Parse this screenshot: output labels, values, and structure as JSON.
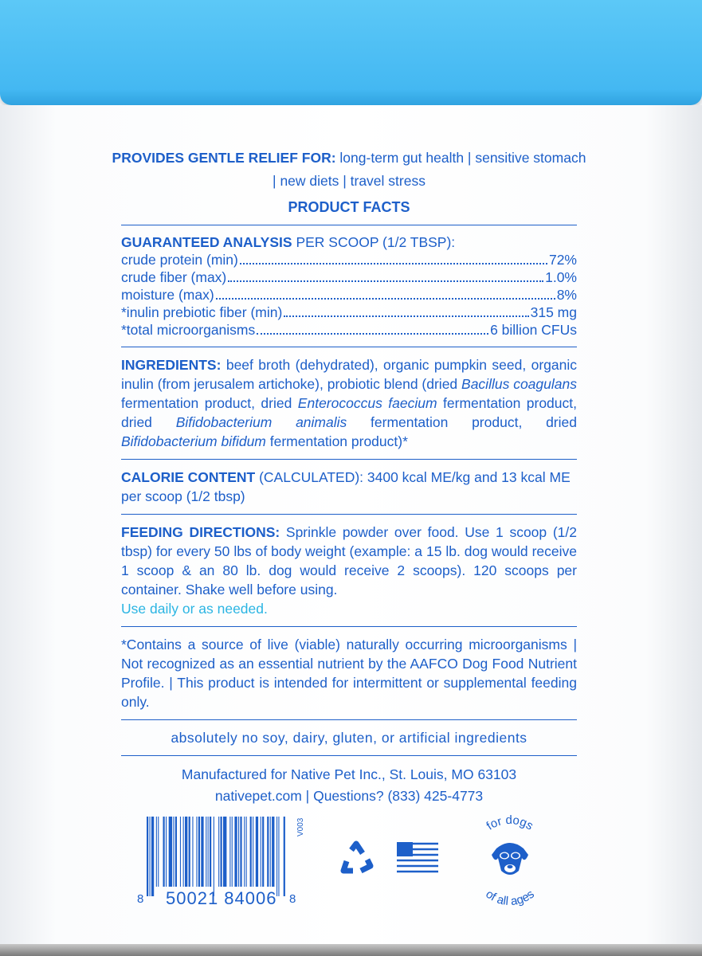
{
  "relief": {
    "heading": "PROVIDES GENTLE RELIEF FOR:",
    "text": "long-term gut health | sensitive stomach | new diets | travel stress"
  },
  "product_facts_title": "PRODUCT FACTS",
  "analysis": {
    "heading": "GUARANTEED ANALYSIS",
    "subheading": "PER SCOOP (1/2 TBSP):",
    "rows": [
      {
        "label": "crude protein (min)",
        "value": "72%"
      },
      {
        "label": "crude fiber (max)",
        "value": "1.0%"
      },
      {
        "label": "moisture (max)",
        "value": "8%"
      },
      {
        "label": "*inulin prebiotic fiber (min)",
        "value": "315 mg"
      },
      {
        "label": "*total microorganisms",
        "value": "6 billion CFUs"
      }
    ]
  },
  "ingredients": {
    "heading": "INGREDIENTS:",
    "p1": "beef broth (dehydrated), organic pumpkin seed, organic inulin (from jerusalem artichoke), probiotic blend (dried ",
    "i1": "Bacillus coagulans",
    "p2": " fermentation product, dried ",
    "i2": "Enterococcus faecium",
    "p3": " fermentation product, dried ",
    "i3": "Bifidobacterium animalis",
    "p4": " fermentation product, dried ",
    "i4": "Bifidobacterium bifidum",
    "p5": " fermentation product)*"
  },
  "calorie": {
    "heading": "CALORIE CONTENT",
    "text": "(CALCULATED): 3400 kcal ME/kg and 13 kcal ME per scoop (1/2 tbsp)"
  },
  "feeding": {
    "heading": "FEEDING DIRECTIONS:",
    "text": "Sprinkle powder over food. Use 1 scoop (1/2 tbsp) for every 50 lbs of body weight (example: a 15 lb. dog would receive 1 scoop & an 80 lb. dog would receive 2 scoops). 120 scoops per container. Shake well before using.",
    "note": "Use daily or as needed."
  },
  "disclaimer": "*Contains a source of live (viable) naturally occurring microorganisms | Not recognized as an essential nutrient by the AAFCO Dog Food Nutrient Profile. | This product is intended for intermittent or supplemental feeding only.",
  "free_from": "absolutely no soy, dairy, gluten, or artificial ingredients",
  "manufacturer": "Manufactured for Native Pet Inc., St. Louis, MO 63103",
  "contact": "nativepet.com | Questions? (833) 425-4773",
  "barcode": {
    "left": "8",
    "middle": "50021 84006",
    "right": "8",
    "version": "V003"
  },
  "badge": {
    "top": "for dogs",
    "bottom": "of all ages"
  },
  "icons": [
    "recycle-icon",
    "us-flag-icon",
    "dog-sunglasses-icon"
  ],
  "colors": {
    "text": "#1d5fc9",
    "lid": "#4fc0f5",
    "accent": "#2bb5e3"
  }
}
